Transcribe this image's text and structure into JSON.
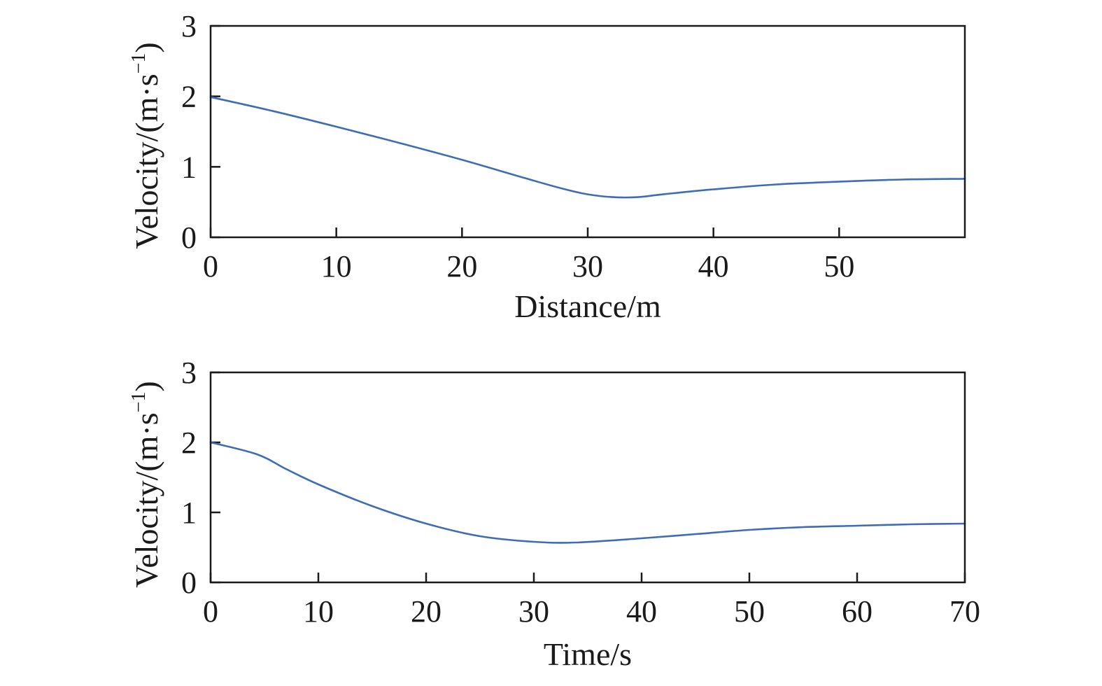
{
  "chart_data": [
    {
      "type": "line",
      "xlabel": "Distance/m",
      "ylabel": {
        "base": "Velocity/(m·s",
        "sup": "−1",
        "close": ")"
      },
      "xlim": [
        0,
        60
      ],
      "ylim": [
        0,
        3
      ],
      "xticks": [
        0,
        10,
        20,
        30,
        40,
        50
      ],
      "yticks": [
        0,
        1,
        2,
        3
      ],
      "grid": false,
      "series": [
        {
          "color": "#3e6db5",
          "x": [
            0,
            5,
            10,
            15,
            20,
            25,
            28,
            30,
            32,
            34,
            36,
            40,
            45,
            50,
            55,
            60
          ],
          "y": [
            1.99,
            1.79,
            1.57,
            1.34,
            1.1,
            0.84,
            0.69,
            0.61,
            0.57,
            0.57,
            0.61,
            0.68,
            0.75,
            0.79,
            0.82,
            0.83
          ]
        }
      ]
    },
    {
      "type": "line",
      "xlabel": "Time/s",
      "ylabel": {
        "base": "Velocity/(m·s",
        "sup": "−1",
        "close": ")"
      },
      "xlim": [
        0,
        70
      ],
      "ylim": [
        0,
        3
      ],
      "xticks": [
        0,
        10,
        20,
        30,
        40,
        50,
        60,
        70
      ],
      "yticks": [
        0,
        1,
        2,
        3
      ],
      "grid": false,
      "series": [
        {
          "color": "#3e6db5",
          "x": [
            0,
            4.3,
            7,
            10,
            15,
            20,
            25,
            30,
            34,
            40,
            45,
            50,
            55,
            60,
            65,
            70
          ],
          "y": [
            2.0,
            1.83,
            1.62,
            1.4,
            1.09,
            0.84,
            0.66,
            0.58,
            0.57,
            0.63,
            0.69,
            0.75,
            0.79,
            0.81,
            0.83,
            0.84
          ]
        }
      ]
    }
  ]
}
